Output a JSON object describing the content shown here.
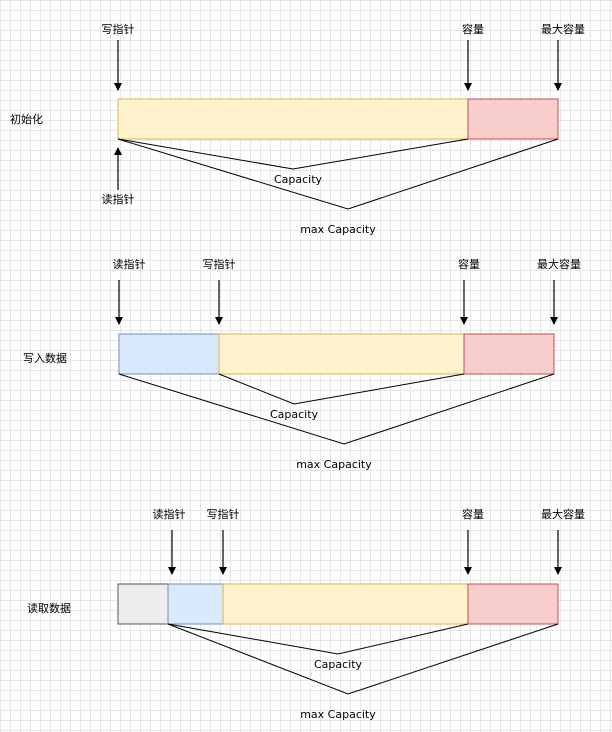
{
  "colors": {
    "unused": "#fff2cc",
    "unused_border": "#d6b656",
    "reserve": "#f8cecc",
    "reserve_border": "#b85450",
    "readable": "#dae8fc",
    "readable_border": "#6c8ebf",
    "discarded": "#eeeeee",
    "discarded_border": "#555555",
    "line": "#000000"
  },
  "stages": [
    {
      "title": "初始化",
      "read_pointer": "读指针",
      "write_pointer": "写指针",
      "capacity_marker": "容量",
      "max_capacity_marker": "最大容量",
      "capacity_label": "Capacity",
      "max_capacity_label": "max Capacity"
    },
    {
      "title": "写入数据",
      "read_pointer": "读指针",
      "write_pointer": "写指针",
      "capacity_marker": "容量",
      "max_capacity_marker": "最大容量",
      "capacity_label": "Capacity",
      "max_capacity_label": "max Capacity"
    },
    {
      "title": "读取数据",
      "read_pointer": "读指针",
      "write_pointer": "写指针",
      "capacity_marker": "容量",
      "max_capacity_marker": "最大容量",
      "capacity_label": "Capacity",
      "max_capacity_label": "max Capacity"
    }
  ]
}
